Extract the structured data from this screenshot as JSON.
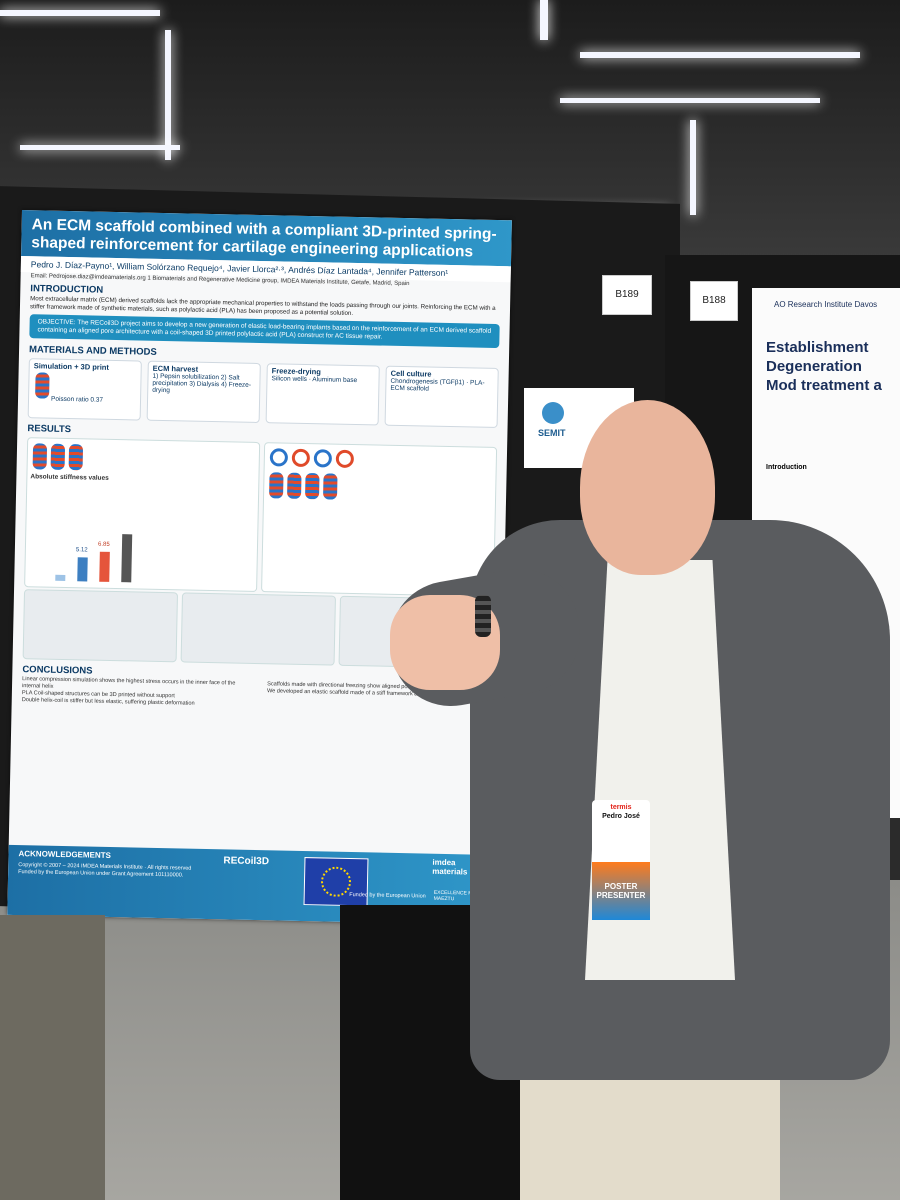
{
  "poster": {
    "title": "An ECM scaffold combined with a compliant 3D-printed spring-shaped reinforcement for cartilage engineering applications",
    "authors": "Pedro J. Díaz-Payno¹, William Solórzano Requejo⁴, Javier Llorca²·³, Andrés Díaz Lantada⁴, Jennifer Patterson¹",
    "email": "Email: Pedrojose.diaz@imdeamaterials.org   1 Biomaterials and Regenerative Medicine group, IMDEA Materials Institute, Getafe, Madrid, Spain",
    "sections": {
      "introduction": "INTRODUCTION",
      "materials": "MATERIALS AND METHODS",
      "results": "RESULTS",
      "conclusions": "CONCLUSIONS",
      "acknowledgements": "ACKNOWLEDGEMENTS"
    },
    "intro_text": "Most extracellular matrix (ECM) derived scaffolds lack the appropriate mechanical properties to withstand the loads passing through our joints. Reinforcing the ECM with a stiffer framework made of synthetic materials, such as polylactic acid (PLA) has been proposed as a potential solution.",
    "objective": "OBJECTIVE: The RECoil3D project aims to develop a new generation of elastic load-bearing implants based on the reinforcement of an ECM derived scaffold containing an aligned pore architecture with a coil-shaped 3D printed polylactic acid (PLA) construct for AC tissue repair.",
    "methods": [
      {
        "label": "Simulation + 3D print",
        "detail": "Poisson ratio 0.37"
      },
      {
        "label": "ECM harvest",
        "detail": "1) Pepsin solubilization 2) Salt precipitation 3) Dialysis 4) Freeze-drying"
      },
      {
        "label": "Freeze-drying",
        "detail": "Silicon wells · Aluminum base"
      },
      {
        "label": "Cell culture",
        "detail": "Chondrogenesis (TGFβ1) · PLA-ECM scaffold"
      }
    ],
    "stiffness_label": "Absolute stiffness values",
    "stiffness_values": [
      "5.12",
      "6.85"
    ],
    "conclusions": [
      "Linear compression simulation shows the highest stress occurs in the inner face of the internal helix",
      "PLA Coil-shaped structures can be 3D printed without support",
      "Double helix-coil is stiffer but less elastic, suffering plastic deformation"
    ],
    "conclusions_right": [
      "Scaffolds made with directional freezing show aligned pore microarchitecture",
      "We developed an elastic scaffold made of a stiff framework and a soft aligned ECM"
    ],
    "copyright": "Copyright © 2007 – 2024 IMDEA Materials Institute · All rights reserved",
    "funding": "Funded by the European Union under Grant Agreement 101110000.",
    "logos": [
      "RECoil3D",
      "Funded by the European Union",
      "imdea materials",
      "EXCELLENCE MARÍA DE MAEZTU"
    ]
  },
  "neighbor_poster": {
    "org": "AO Research Institute Davos",
    "title": "Establishment Degeneration Mod treatment a",
    "section": "Introduction"
  },
  "board_tags": [
    "B189",
    "B188"
  ],
  "semit_label": "SEMIT",
  "badge": {
    "org": "termis",
    "name": "Pedro José",
    "ribbon": "POSTER PRESENTER"
  }
}
